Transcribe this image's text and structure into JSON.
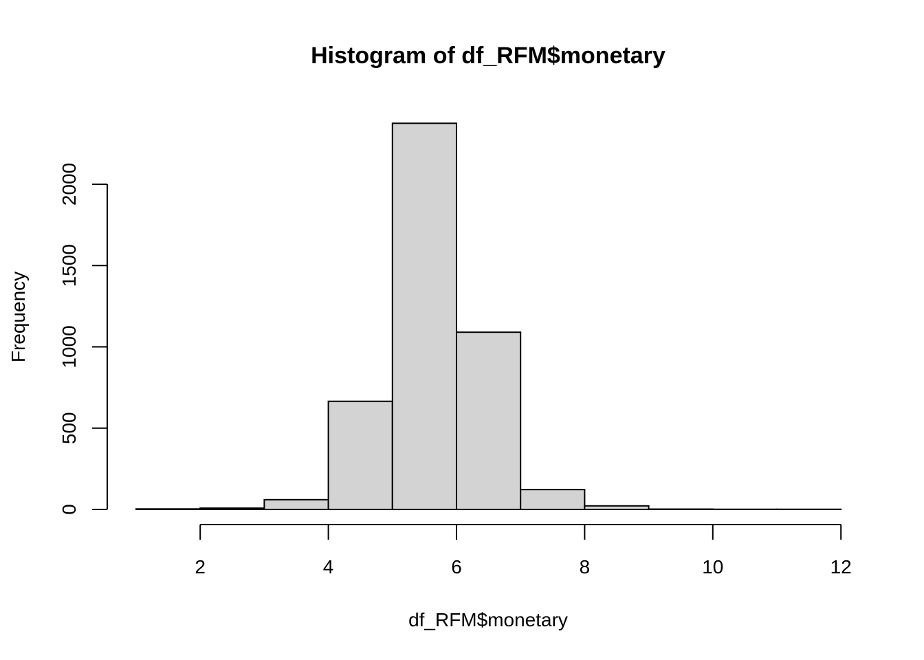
{
  "chart_data": {
    "type": "bar",
    "title": "Histogram of df_RFM$monetary",
    "xlabel": "df_RFM$monetary",
    "ylabel": "Frequency",
    "bins": [
      {
        "x0": 1,
        "x1": 2,
        "count": 3
      },
      {
        "x0": 2,
        "x1": 3,
        "count": 8
      },
      {
        "x0": 3,
        "x1": 4,
        "count": 60
      },
      {
        "x0": 4,
        "x1": 5,
        "count": 665
      },
      {
        "x0": 5,
        "x1": 6,
        "count": 2375
      },
      {
        "x0": 6,
        "x1": 7,
        "count": 1090
      },
      {
        "x0": 7,
        "x1": 8,
        "count": 122
      },
      {
        "x0": 8,
        "x1": 9,
        "count": 22
      },
      {
        "x0": 9,
        "x1": 10,
        "count": 2
      },
      {
        "x0": 10,
        "x1": 11,
        "count": 1
      },
      {
        "x0": 11,
        "x1": 12,
        "count": 1
      }
    ],
    "xticks": [
      2,
      4,
      6,
      8,
      10,
      12
    ],
    "yticks": [
      0,
      500,
      1000,
      1500,
      2000
    ],
    "xlim": [
      1,
      12
    ],
    "ylim": [
      0,
      2375
    ],
    "bar_color": "#d3d3d3",
    "edge_color": "#000000",
    "grid": false,
    "legend": "none"
  }
}
